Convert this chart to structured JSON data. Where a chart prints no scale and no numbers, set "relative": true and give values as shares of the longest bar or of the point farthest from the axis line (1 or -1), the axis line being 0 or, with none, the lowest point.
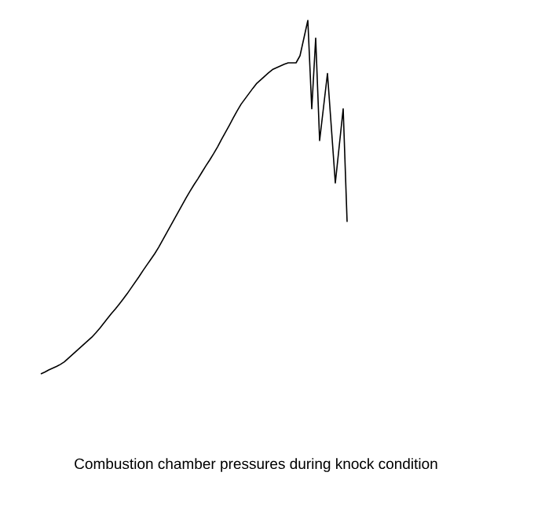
{
  "chart_data": {
    "type": "line",
    "title": "Combustion chamber pressures during knock condition",
    "relative": true,
    "color": "#000000",
    "categories": [
      null,
      null,
      null,
      null,
      null,
      null,
      null,
      null,
      null,
      null,
      null,
      null,
      null,
      null,
      null,
      null,
      null,
      null,
      null,
      null,
      null,
      null,
      null,
      null,
      null,
      null,
      null,
      null,
      null,
      null,
      null,
      null,
      null,
      null,
      null,
      null,
      null,
      null,
      null,
      null,
      null,
      null,
      null,
      null,
      null,
      null,
      null,
      null,
      null,
      null,
      null,
      null,
      null,
      null,
      null,
      null,
      null,
      null,
      null,
      null,
      null,
      null,
      null,
      null,
      null,
      null,
      null,
      null,
      null,
      null,
      null,
      null,
      null,
      null,
      null,
      null,
      null,
      null,
      null
    ],
    "values": [
      0.0,
      0.005,
      0.011,
      0.016,
      0.021,
      0.027,
      0.034,
      0.044,
      0.054,
      0.064,
      0.074,
      0.084,
      0.094,
      0.104,
      0.116,
      0.129,
      0.143,
      0.157,
      0.171,
      0.184,
      0.198,
      0.212,
      0.227,
      0.243,
      0.259,
      0.275,
      0.292,
      0.308,
      0.324,
      0.34,
      0.358,
      0.378,
      0.398,
      0.418,
      0.438,
      0.458,
      0.478,
      0.498,
      0.517,
      0.535,
      0.552,
      0.57,
      0.588,
      0.605,
      0.623,
      0.642,
      0.663,
      0.683,
      0.703,
      0.724,
      0.744,
      0.763,
      0.778,
      0.793,
      0.808,
      0.822,
      0.832,
      0.842,
      0.852,
      0.861,
      0.866,
      0.871,
      0.876,
      0.88,
      0.88,
      0.88,
      0.9,
      0.95,
      1.0,
      0.75,
      0.95,
      0.66,
      0.755,
      0.85,
      0.695,
      0.54,
      0.645,
      0.75,
      0.43
    ]
  }
}
